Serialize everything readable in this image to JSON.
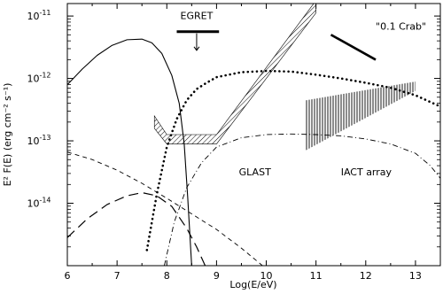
{
  "chart_data": {
    "type": "line",
    "title": "",
    "xlabel": "Log(E/eV)",
    "ylabel": "E² F(E) (erg cm⁻² s⁻¹)",
    "xlim": [
      6,
      13.5
    ],
    "ylim_log10": [
      -15,
      -10.8
    ],
    "x_ticks": [
      6,
      7,
      8,
      9,
      10,
      11,
      12,
      13
    ],
    "y_ticks": [
      {
        "mantissa": "10",
        "exp": "-11",
        "value": -11
      },
      {
        "mantissa": "10",
        "exp": "-12",
        "value": -12
      },
      {
        "mantissa": "10",
        "exp": "-13",
        "value": -13
      },
      {
        "mantissa": "10",
        "exp": "-14",
        "value": -14
      }
    ],
    "grid": false,
    "legend": "none",
    "series": [
      {
        "style": "solid",
        "x": [
          6.0,
          6.3,
          6.6,
          6.9,
          7.2,
          7.5,
          7.7,
          7.9,
          8.1,
          8.25,
          8.35,
          8.42,
          8.5
        ],
        "y": [
          -12.1,
          -11.85,
          -11.63,
          -11.47,
          -11.38,
          -11.37,
          -11.43,
          -11.6,
          -11.95,
          -12.4,
          -13.05,
          -13.9,
          -15.0
        ]
      },
      {
        "style": "dotted",
        "x": [
          7.6,
          7.8,
          8.0,
          8.2,
          8.4,
          8.6,
          8.8,
          9.0,
          9.5,
          10.0,
          10.5,
          11.0,
          11.5,
          12.0,
          12.5,
          13.0,
          13.5
        ],
        "y": [
          -14.75,
          -13.85,
          -13.1,
          -12.65,
          -12.35,
          -12.17,
          -12.07,
          -11.98,
          -11.9,
          -11.88,
          -11.89,
          -11.94,
          -12.0,
          -12.07,
          -12.15,
          -12.27,
          -12.45
        ]
      },
      {
        "style": "dash-dot",
        "x": [
          7.95,
          8.15,
          8.4,
          8.7,
          9.0,
          9.5,
          10.0,
          10.5,
          11.0,
          11.5,
          12.0,
          12.5,
          13.0,
          13.3,
          13.5
        ],
        "y": [
          -15.0,
          -14.3,
          -13.75,
          -13.35,
          -13.1,
          -12.95,
          -12.9,
          -12.89,
          -12.9,
          -12.92,
          -12.97,
          -13.05,
          -13.2,
          -13.4,
          -13.6
        ]
      },
      {
        "style": "short-dash",
        "x": [
          6.0,
          6.5,
          7.0,
          7.5,
          8.0,
          8.5,
          9.0,
          9.5,
          10.0
        ],
        "y": [
          -13.18,
          -13.3,
          -13.47,
          -13.68,
          -13.92,
          -14.17,
          -14.42,
          -14.72,
          -15.05
        ]
      },
      {
        "style": "long-dash",
        "x": [
          6.0,
          6.4,
          6.8,
          7.2,
          7.5,
          7.8,
          8.1,
          8.4,
          8.6,
          8.8
        ],
        "y": [
          -14.55,
          -14.25,
          -14.02,
          -13.88,
          -13.83,
          -13.88,
          -14.05,
          -14.4,
          -14.7,
          -15.05
        ]
      },
      {
        "style": "solid-thick",
        "x": [
          11.3,
          12.2
        ],
        "y": [
          -11.3,
          -11.7
        ]
      }
    ],
    "regions": [
      {
        "name": "GLAST",
        "lower": {
          "x": [
            7.75,
            8.0,
            9.0,
            11.0
          ],
          "y": [
            -12.8,
            -13.05,
            -13.05,
            -10.95
          ]
        },
        "upper": {
          "x": [
            7.75,
            8.0,
            9.0,
            11.0
          ],
          "y": [
            -12.6,
            -12.9,
            -12.9,
            -10.75
          ]
        }
      },
      {
        "name": "IACT array",
        "lower": {
          "x": [
            10.8,
            13.0
          ],
          "y": [
            -13.15,
            -12.2
          ]
        },
        "upper": {
          "x": [
            10.8,
            13.0
          ],
          "y": [
            -12.35,
            -12.05
          ]
        }
      }
    ],
    "upper_limit": {
      "label": "EGRET",
      "x1": 8.2,
      "x2": 9.05,
      "y": -11.25,
      "arrow_x": 8.6,
      "arrow_y2": -11.55
    },
    "annotations": [
      {
        "text": "GLAST",
        "x": 9.45,
        "y": -13.55
      },
      {
        "text": "IACT array",
        "x": 11.5,
        "y": -13.55
      },
      {
        "text": "\"0.1 Crab\"",
        "x": 12.2,
        "y": -11.22
      },
      {
        "text": "EGRET",
        "x": 8.6,
        "y": -11.05
      }
    ]
  }
}
